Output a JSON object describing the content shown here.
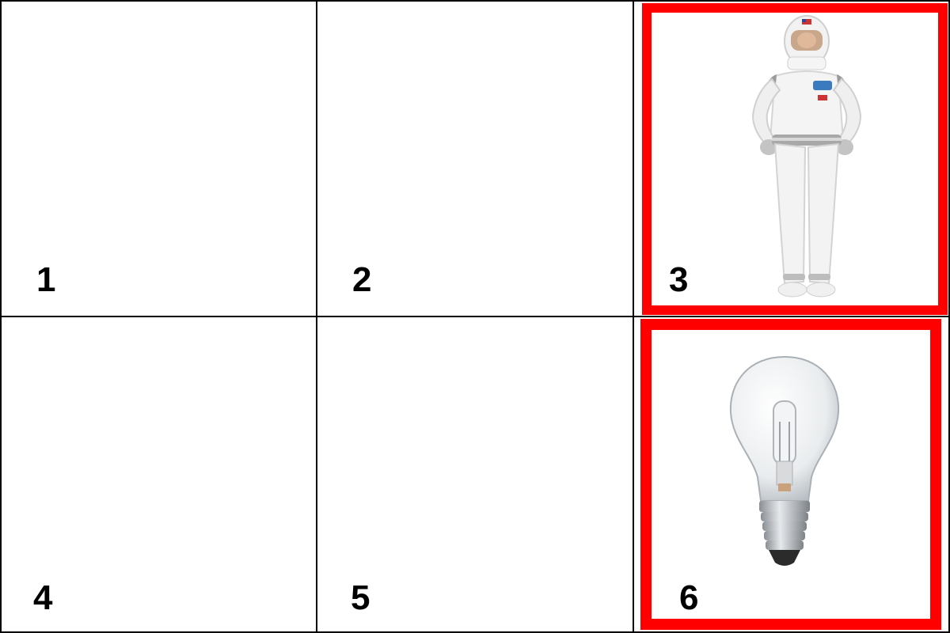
{
  "cells": [
    {
      "label": "1",
      "image": null,
      "selected": false
    },
    {
      "label": "2",
      "image": null,
      "selected": false
    },
    {
      "label": "3",
      "image": "astronaut-costume",
      "selected": true
    },
    {
      "label": "4",
      "image": null,
      "selected": false
    },
    {
      "label": "5",
      "image": null,
      "selected": false
    },
    {
      "label": "6",
      "image": "light-bulb",
      "selected": true
    }
  ],
  "colors": {
    "selection": "#ff0000",
    "grid_line": "#000000",
    "background": "#ffffff"
  }
}
